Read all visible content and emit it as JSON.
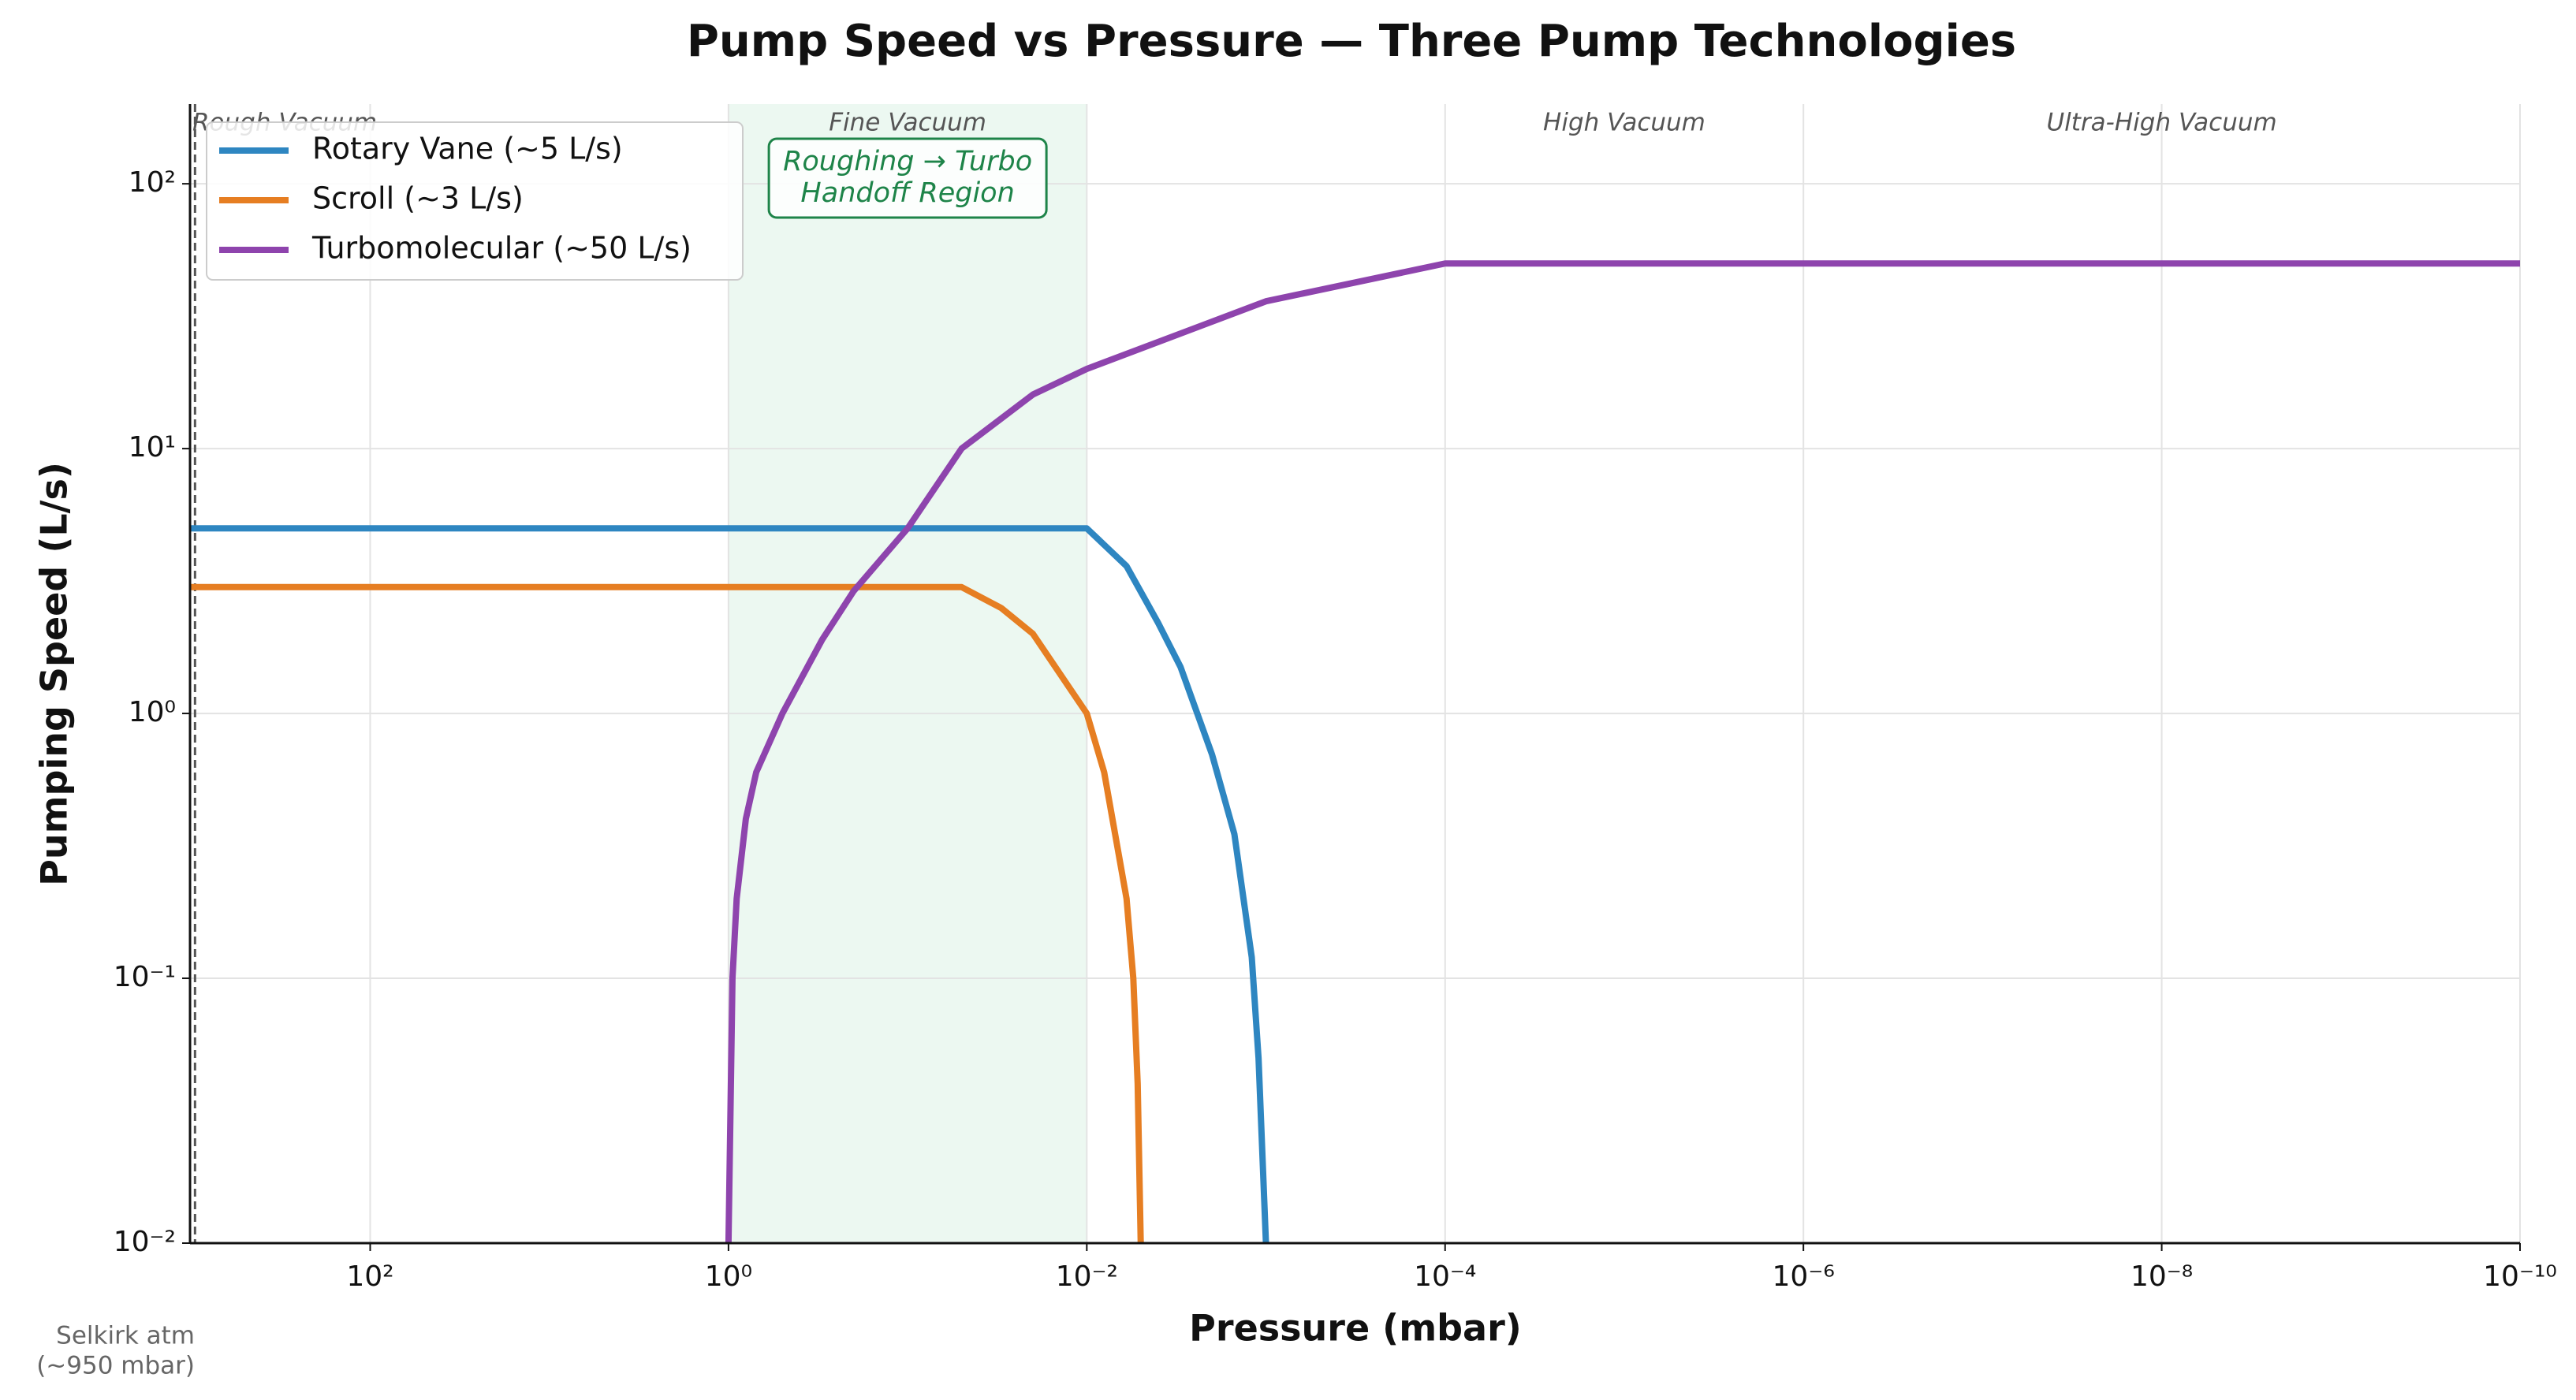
{
  "chart_data": {
    "type": "line",
    "title": "Pump Speed vs Pressure — Three Pump Technologies",
    "xlabel": "Pressure (mbar)",
    "ylabel": "Pumping Speed (L/s)",
    "xscale": "log",
    "yscale": "log",
    "xlim": [
      1013,
      1e-10
    ],
    "ylim": [
      0.01,
      200
    ],
    "xticks": [
      {
        "value": 100,
        "label": "10²"
      },
      {
        "value": 1,
        "label": "10⁰"
      },
      {
        "value": 0.01,
        "label": "10⁻²"
      },
      {
        "value": 0.0001,
        "label": "10⁻⁴"
      },
      {
        "value": 1e-06,
        "label": "10⁻⁶"
      },
      {
        "value": 1e-08,
        "label": "10⁻⁸"
      },
      {
        "value": 1e-10,
        "label": "10⁻¹⁰"
      }
    ],
    "yticks": [
      {
        "value": 0.01,
        "label": "10⁻²"
      },
      {
        "value": 0.1,
        "label": "10⁻¹"
      },
      {
        "value": 1,
        "label": "10⁰"
      },
      {
        "value": 10,
        "label": "10¹"
      },
      {
        "value": 100,
        "label": "10²"
      }
    ],
    "grid": true,
    "legend": "upper left",
    "series": [
      {
        "name": "Rotary Vane (~5 L/s)",
        "color": "#2e86c1",
        "x": [
          1013,
          0.01,
          0.006,
          0.004,
          0.003,
          0.002,
          0.0015,
          0.0012,
          0.0011,
          0.001
        ],
        "values": [
          5,
          5,
          3.6,
          2.2,
          1.5,
          0.7,
          0.35,
          0.12,
          0.05,
          0.01
        ]
      },
      {
        "name": "Scroll (~3 L/s)",
        "color": "#e67e22",
        "x": [
          1013,
          0.05,
          0.03,
          0.02,
          0.01,
          0.008,
          0.006,
          0.0055,
          0.0052,
          0.005
        ],
        "values": [
          3,
          3,
          2.5,
          2.0,
          1.0,
          0.6,
          0.2,
          0.1,
          0.04,
          0.01
        ]
      },
      {
        "name": "Turbomolecular (~50 L/s)",
        "color": "#8e44ad",
        "x": [
          1,
          0.95,
          0.9,
          0.8,
          0.7,
          0.5,
          0.3,
          0.2,
          0.1,
          0.05,
          0.02,
          0.01,
          0.001,
          0.0001,
          1e-10
        ],
        "values": [
          0.01,
          0.1,
          0.2,
          0.4,
          0.6,
          1.0,
          1.9,
          2.9,
          5,
          10,
          16,
          20,
          36,
          50,
          50
        ]
      }
    ],
    "span": {
      "x": [
        1,
        0.01
      ],
      "color": "#27ae60",
      "label": [
        "Roughing → Turbo",
        "Handoff Region"
      ]
    },
    "regions": [
      {
        "label": "Rough Vacuum",
        "x": 300
      },
      {
        "label": "Fine Vacuum",
        "x": 0.1
      },
      {
        "label": "High Vacuum",
        "x": 1e-05
      },
      {
        "label": "Ultra-High Vacuum",
        "x": 1e-08
      }
    ],
    "reference_line": {
      "x": 950,
      "label": [
        "Selkirk atm",
        "(~950 mbar)"
      ]
    }
  }
}
